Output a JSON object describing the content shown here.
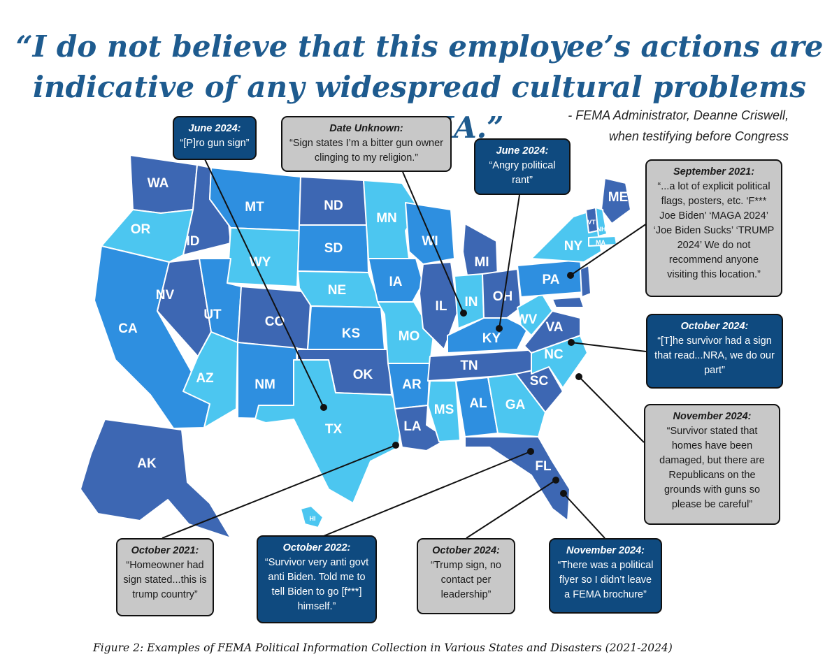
{
  "title": {
    "line1": "“I do not believe that this employee’s actions are",
    "line2": "indicative of any widespread cultural problems at FEMA.”"
  },
  "attribution": {
    "line1": "- FEMA Administrator, Deanne Criswell,",
    "line2": "when testifying before Congress"
  },
  "colors": {
    "dark_state": "#3d67b3",
    "mid_state": "#2e8fe0",
    "light_state": "#4cc6f0",
    "dark_callout": "#0f4a7f",
    "light_callout": "#c8c8c8",
    "title": "#1e5b8f"
  },
  "states": {
    "WA": "WA",
    "OR": "OR",
    "CA": "CA",
    "ID": "ID",
    "NV": "NV",
    "MT": "MT",
    "WY": "WY",
    "UT": "UT",
    "AZ": "AZ",
    "CO": "CO",
    "NM": "NM",
    "ND": "ND",
    "SD": "SD",
    "NE": "NE",
    "KS": "KS",
    "OK": "OK",
    "TX": "TX",
    "MN": "MN",
    "IA": "IA",
    "MO": "MO",
    "AR": "AR",
    "LA": "LA",
    "WI": "WI",
    "IL": "IL",
    "MI": "MI",
    "IN": "IN",
    "OH": "OH",
    "KY": "KY",
    "TN": "TN",
    "MS": "MS",
    "AL": "AL",
    "GA": "GA",
    "FL": "FL",
    "SC": "SC",
    "NC": "NC",
    "VA": "VA",
    "WV": "WV",
    "PA": "PA",
    "NY": "NY",
    "ME": "ME",
    "VT": "VT",
    "NH": "NH",
    "MA": "MA",
    "AK": "AK",
    "HI": "HI"
  },
  "callouts": {
    "c1": {
      "heading": "June 2024:",
      "text": "“[P]ro gun sign”"
    },
    "c2": {
      "heading": "Date Unknown:",
      "text": "“Sign states I’m a bitter gun owner clinging to my religion.”"
    },
    "c3": {
      "heading": "June 2024:",
      "text": "“Angry political rant”"
    },
    "c4": {
      "heading": "September 2021:",
      "text": "“...a lot of explicit political flags, posters, etc. ‘F*** Joe Biden’ ‘MAGA 2024’ ‘Joe Biden Sucks’ ‘TRUMP 2024’ We do not recommend anyone visiting this location.”"
    },
    "c5": {
      "heading": "October 2024:",
      "text": "“[T]he survivor had a sign that read...NRA, we do our part”"
    },
    "c6": {
      "heading": "November 2024:",
      "text": "“Survivor stated that homes have been damaged, but there are Republicans on the grounds with guns so please be careful”"
    },
    "c7": {
      "heading": "October 2021:",
      "text": "“Homeowner had sign stated...this is trump country”"
    },
    "c8": {
      "heading": "October 2022:",
      "text": "“Survivor very anti govt anti Biden. Told me to tell Biden to go [f***] himself.”"
    },
    "c9": {
      "heading": "October 2024:",
      "text": "“Trump sign, no contact per leadership”"
    },
    "c10": {
      "heading": "November 2024:",
      "text": "“There was a political flyer so I didn’t leave a FEMA brochure”"
    }
  },
  "caption": "Figure 2: Examples of FEMA Political Information Collection in Various States and Disasters (2021-2024)"
}
